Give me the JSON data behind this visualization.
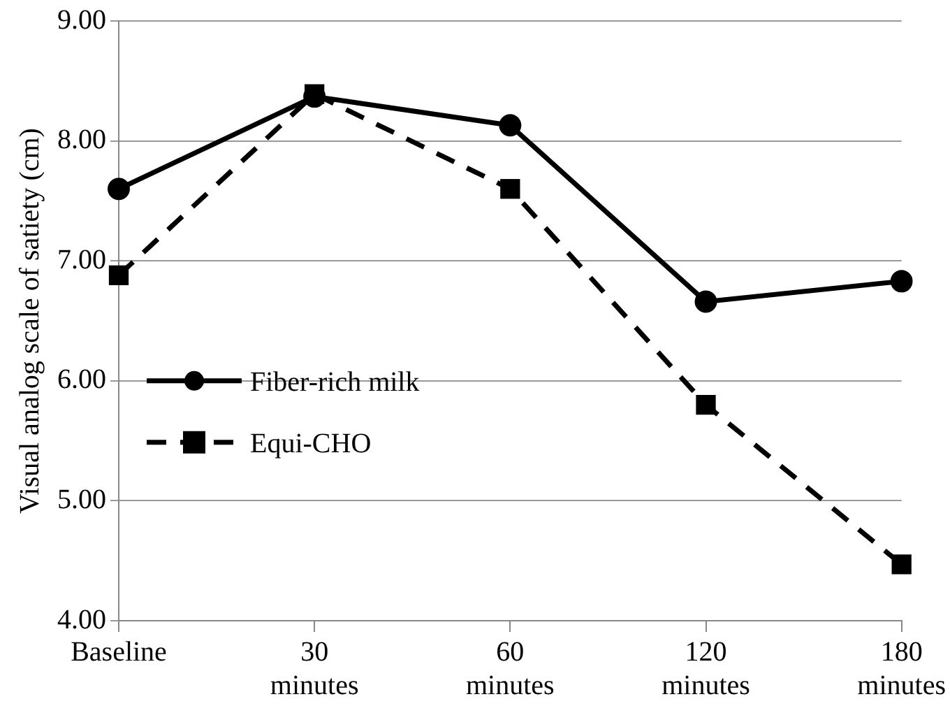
{
  "chart_data": {
    "type": "line",
    "ylabel": "Visual analog scale of satiety (cm)",
    "categories": [
      "Baseline",
      "30 minutes",
      "60 minutes",
      "120 minutes",
      "180 minutes"
    ],
    "series": [
      {
        "name": "Fiber-rich milk",
        "color": "#000000",
        "values": [
          7.6,
          8.37,
          8.13,
          6.66,
          6.83
        ],
        "marker": "circle",
        "line_style": "solid"
      },
      {
        "name": "Equi-CHO",
        "color": "#000000",
        "values": [
          6.88,
          8.39,
          7.6,
          5.8,
          4.47
        ],
        "marker": "square",
        "line_style": "dashed"
      }
    ],
    "ylim": [
      4,
      9
    ],
    "yticks": [
      {
        "value": 4,
        "label": "4.00"
      },
      {
        "value": 5,
        "label": "5.00"
      },
      {
        "value": 6,
        "label": "6.00"
      },
      {
        "value": 7,
        "label": "7.00"
      },
      {
        "value": 8,
        "label": "8.00"
      },
      {
        "value": 9,
        "label": "9.00"
      }
    ],
    "grid": "y",
    "legend": "center left"
  }
}
